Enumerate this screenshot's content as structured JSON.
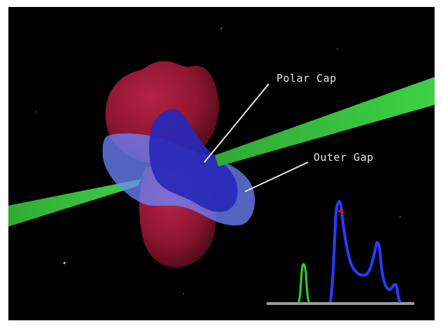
{
  "labels": {
    "polar_cap": "Polar Cap",
    "outer_gap": "Outer Gap"
  },
  "colors": {
    "background": "#000000",
    "magnetosphere": "#8e1530",
    "emission_region": "#3a3ad8",
    "emission_glow": "#6f86ff",
    "beam": "#34c43a",
    "pulse_profile": "#2a3cff",
    "pulse_peak_marker": "#d01818",
    "small_pulse": "#30d030",
    "baseline": "#9a9a9a",
    "leader_line": "#e6e6e6"
  }
}
